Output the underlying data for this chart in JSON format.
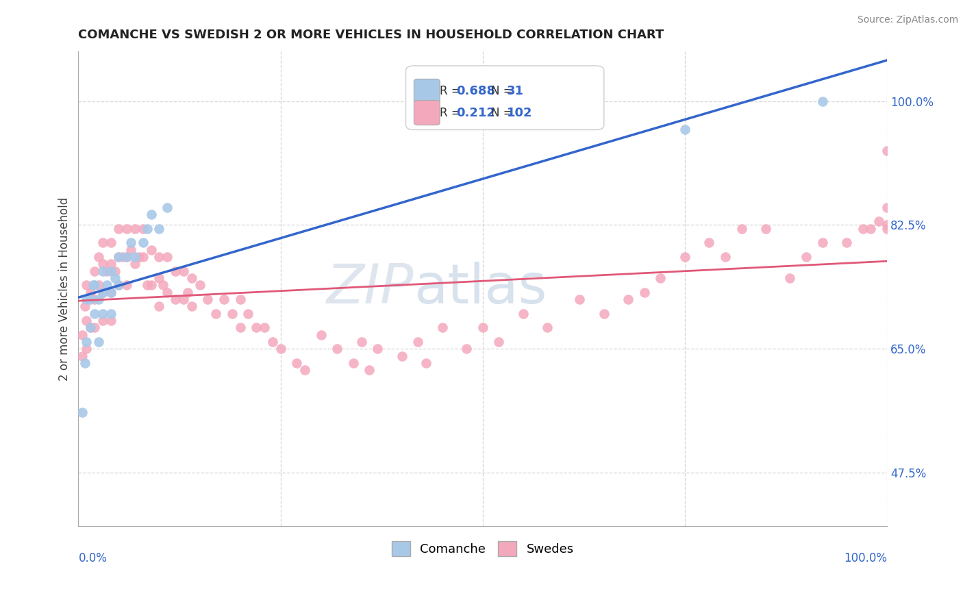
{
  "title": "COMANCHE VS SWEDISH 2 OR MORE VEHICLES IN HOUSEHOLD CORRELATION CHART",
  "source": "Source: ZipAtlas.com",
  "ylabel": "2 or more Vehicles in Household",
  "ytick_labels": [
    "47.5%",
    "65.0%",
    "82.5%",
    "100.0%"
  ],
  "ytick_values": [
    0.475,
    0.65,
    0.825,
    1.0
  ],
  "legend_blue_r": "0.688",
  "legend_blue_n": "31",
  "legend_pink_r": "0.212",
  "legend_pink_n": "102",
  "comanche_color": "#a8c8e8",
  "swedish_color": "#f4a8bc",
  "trendline_blue": "#3366cc",
  "trendline_pink": "#e05878",
  "background_color": "#ffffff",
  "watermark_zip_color": "#d0d8e8",
  "watermark_atlas_color": "#b8cce0",
  "comanche_x": [
    0.005,
    0.008,
    0.01,
    0.01,
    0.015,
    0.015,
    0.018,
    0.02,
    0.02,
    0.025,
    0.025,
    0.03,
    0.03,
    0.03,
    0.035,
    0.04,
    0.04,
    0.04,
    0.045,
    0.05,
    0.05,
    0.06,
    0.065,
    0.07,
    0.08,
    0.085,
    0.09,
    0.1,
    0.11,
    0.75,
    0.92
  ],
  "comanche_y": [
    0.56,
    0.63,
    0.72,
    0.66,
    0.68,
    0.72,
    0.74,
    0.7,
    0.74,
    0.72,
    0.66,
    0.76,
    0.73,
    0.7,
    0.74,
    0.76,
    0.73,
    0.7,
    0.75,
    0.78,
    0.74,
    0.78,
    0.8,
    0.78,
    0.8,
    0.82,
    0.84,
    0.82,
    0.85,
    0.96,
    1.0
  ],
  "swedish_x": [
    0.005,
    0.005,
    0.008,
    0.01,
    0.01,
    0.01,
    0.015,
    0.015,
    0.02,
    0.02,
    0.02,
    0.025,
    0.025,
    0.03,
    0.03,
    0.03,
    0.03,
    0.035,
    0.04,
    0.04,
    0.04,
    0.04,
    0.045,
    0.05,
    0.05,
    0.05,
    0.055,
    0.06,
    0.06,
    0.06,
    0.065,
    0.07,
    0.07,
    0.075,
    0.08,
    0.08,
    0.085,
    0.09,
    0.09,
    0.1,
    0.1,
    0.1,
    0.105,
    0.11,
    0.11,
    0.12,
    0.12,
    0.13,
    0.13,
    0.135,
    0.14,
    0.14,
    0.15,
    0.16,
    0.17,
    0.18,
    0.19,
    0.2,
    0.2,
    0.21,
    0.22,
    0.23,
    0.24,
    0.25,
    0.27,
    0.28,
    0.3,
    0.32,
    0.34,
    0.35,
    0.36,
    0.37,
    0.4,
    0.42,
    0.43,
    0.45,
    0.48,
    0.5,
    0.52,
    0.55,
    0.58,
    0.62,
    0.65,
    0.68,
    0.7,
    0.72,
    0.75,
    0.78,
    0.8,
    0.82,
    0.85,
    0.88,
    0.9,
    0.92,
    0.95,
    0.97,
    0.98,
    0.99,
    1.0,
    1.0,
    1.0,
    1.0
  ],
  "swedish_y": [
    0.67,
    0.64,
    0.71,
    0.74,
    0.69,
    0.65,
    0.73,
    0.68,
    0.76,
    0.72,
    0.68,
    0.78,
    0.74,
    0.8,
    0.77,
    0.73,
    0.69,
    0.76,
    0.8,
    0.77,
    0.73,
    0.69,
    0.76,
    0.82,
    0.78,
    0.74,
    0.78,
    0.82,
    0.78,
    0.74,
    0.79,
    0.82,
    0.77,
    0.78,
    0.82,
    0.78,
    0.74,
    0.79,
    0.74,
    0.78,
    0.75,
    0.71,
    0.74,
    0.78,
    0.73,
    0.76,
    0.72,
    0.76,
    0.72,
    0.73,
    0.75,
    0.71,
    0.74,
    0.72,
    0.7,
    0.72,
    0.7,
    0.72,
    0.68,
    0.7,
    0.68,
    0.68,
    0.66,
    0.65,
    0.63,
    0.62,
    0.67,
    0.65,
    0.63,
    0.66,
    0.62,
    0.65,
    0.64,
    0.66,
    0.63,
    0.68,
    0.65,
    0.68,
    0.66,
    0.7,
    0.68,
    0.72,
    0.7,
    0.72,
    0.73,
    0.75,
    0.78,
    0.8,
    0.78,
    0.82,
    0.82,
    0.75,
    0.78,
    0.8,
    0.8,
    0.82,
    0.82,
    0.83,
    0.825,
    0.82,
    0.85,
    0.93
  ]
}
